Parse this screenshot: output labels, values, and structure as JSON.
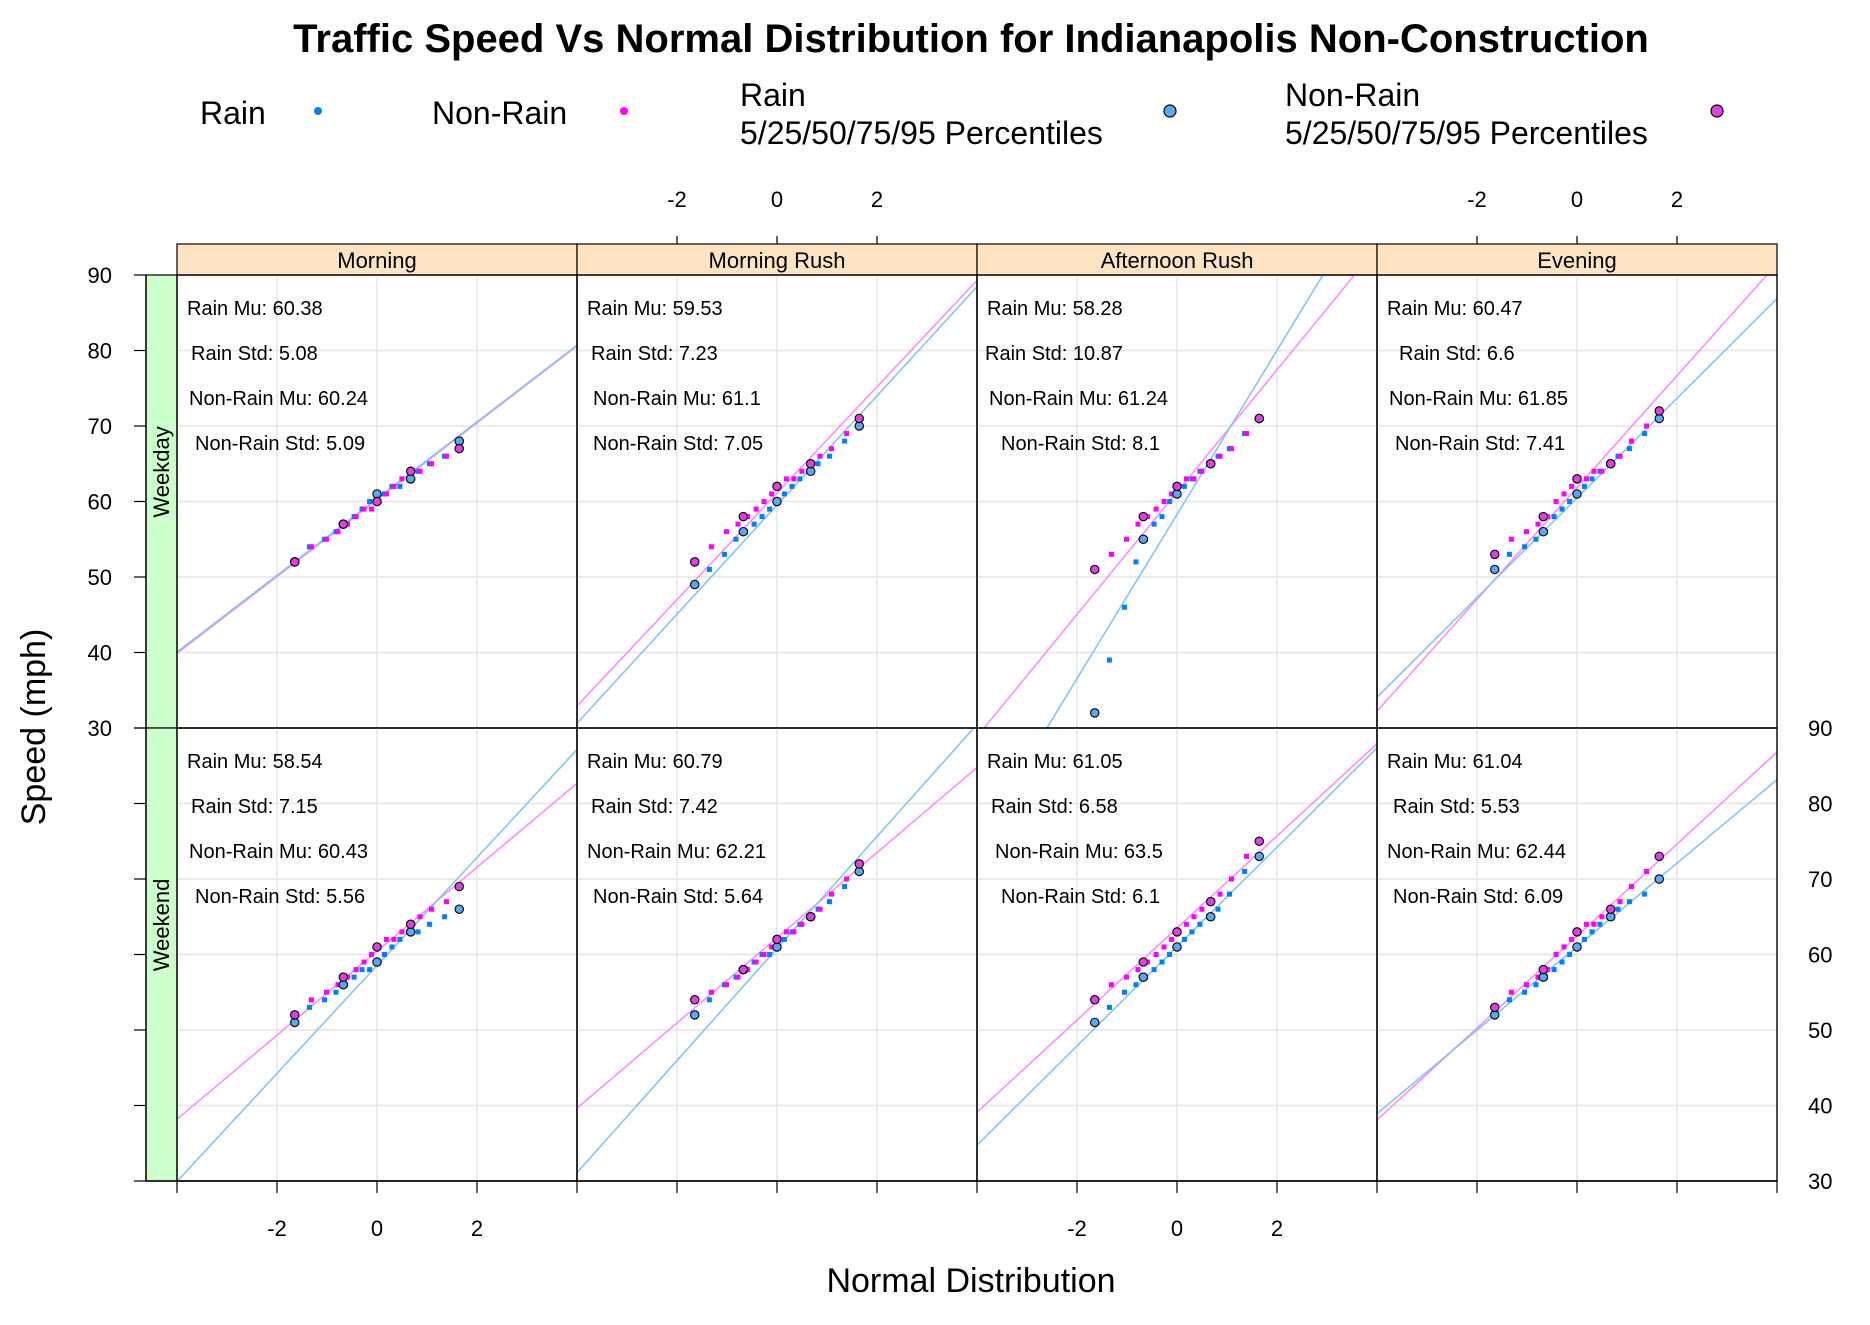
{
  "chart_data": {
    "type": "scatter",
    "title": "Traffic Speed Vs Normal Distribution for Indianapolis Non-Construction",
    "xlabel": "Normal Distribution",
    "ylabel": "Speed (mph)",
    "xlim": [
      -4,
      4
    ],
    "ylim": [
      30,
      90
    ],
    "x_ticks": [
      -2,
      0,
      2
    ],
    "y_ticks": [
      30,
      40,
      50,
      60,
      70,
      80,
      90
    ],
    "grid": true,
    "legend_placement": "top",
    "legend": [
      {
        "label": "Rain",
        "color": "#0080ff",
        "marker": "small-dot"
      },
      {
        "label": "Non-Rain",
        "color": "#ff00ff",
        "marker": "small-dot"
      },
      {
        "label": "Rain\n5/25/50/75/95 Percentiles",
        "color": "#5aa8f0",
        "marker": "circle"
      },
      {
        "label": "Non-Rain\n5/25/50/75/95 Percentiles",
        "color": "#e040e0",
        "marker": "circle"
      }
    ],
    "colors": {
      "rain": "#0080ff",
      "nonrain": "#ff00ff",
      "rain_line": "#87c4ef",
      "nonrain_line": "#ff8cff",
      "strip_top": "#ffe4c4",
      "strip_side": "#ccffcc",
      "grid": "#e6e6e6"
    },
    "columns": [
      "Morning",
      "Morning Rush",
      "Afternoon Rush",
      "Evening"
    ],
    "rows": [
      "Weekday",
      "Weekend"
    ],
    "percentile_z": [
      -1.645,
      -0.674,
      0,
      0.674,
      1.645
    ],
    "panels": [
      {
        "row": "Weekday",
        "column": "Morning",
        "rain_mu": 60.38,
        "rain_std": 5.08,
        "nonrain_mu": 60.24,
        "nonrain_std": 5.09,
        "labels": [
          "Rain Mu: 60.38",
          "Rain Std: 5.08",
          "Non-Rain Mu: 60.24",
          "Non-Rain Std: 5.09"
        ],
        "rain_percentiles": [
          52,
          57,
          61,
          63,
          68
        ],
        "nonrain_percentiles": [
          52,
          57,
          60,
          64,
          67
        ]
      },
      {
        "row": "Weekday",
        "column": "Morning Rush",
        "rain_mu": 59.53,
        "rain_std": 7.23,
        "nonrain_mu": 61.1,
        "nonrain_std": 7.05,
        "labels": [
          "Rain Mu: 59.53",
          "Rain Std: 7.23",
          "Non-Rain Mu: 61.1",
          "Non-Rain Std: 7.05"
        ],
        "rain_percentiles": [
          49,
          56,
          60,
          64,
          70
        ],
        "nonrain_percentiles": [
          52,
          58,
          62,
          65,
          71
        ]
      },
      {
        "row": "Weekday",
        "column": "Afternoon Rush",
        "rain_mu": 58.28,
        "rain_std": 10.87,
        "nonrain_mu": 61.24,
        "nonrain_std": 8.1,
        "labels": [
          "Rain Mu: 58.28",
          "Rain Std: 10.87",
          "Non-Rain Mu: 61.24",
          "Non-Rain Std: 8.1"
        ],
        "rain_percentiles": [
          32,
          55,
          61,
          65,
          71
        ],
        "nonrain_percentiles": [
          51,
          58,
          62,
          65,
          71
        ]
      },
      {
        "row": "Weekday",
        "column": "Evening",
        "rain_mu": 60.47,
        "rain_std": 6.6,
        "nonrain_mu": 61.85,
        "nonrain_std": 7.41,
        "labels": [
          "Rain Mu: 60.47",
          "Rain Std: 6.6",
          "Non-Rain Mu: 61.85",
          "Non-Rain Std: 7.41"
        ],
        "rain_percentiles": [
          51,
          56,
          61,
          65,
          71
        ],
        "nonrain_percentiles": [
          53,
          58,
          63,
          65,
          72
        ]
      },
      {
        "row": "Weekend",
        "column": "Morning",
        "rain_mu": 58.54,
        "rain_std": 7.15,
        "nonrain_mu": 60.43,
        "nonrain_std": 5.56,
        "labels": [
          "Rain Mu: 58.54",
          "Rain Std: 7.15",
          "Non-Rain Mu: 60.43",
          "Non-Rain Std: 5.56"
        ],
        "rain_percentiles": [
          51,
          56,
          59,
          63,
          66
        ],
        "nonrain_percentiles": [
          52,
          57,
          61,
          64,
          69
        ]
      },
      {
        "row": "Weekend",
        "column": "Morning Rush",
        "rain_mu": 60.79,
        "rain_std": 7.42,
        "nonrain_mu": 62.21,
        "nonrain_std": 5.64,
        "labels": [
          "Rain Mu: 60.79",
          "Rain Std: 7.42",
          "Non-Rain Mu: 62.21",
          "Non-Rain Std: 5.64"
        ],
        "rain_percentiles": [
          52,
          58,
          61,
          65,
          71
        ],
        "nonrain_percentiles": [
          54,
          58,
          62,
          65,
          72
        ]
      },
      {
        "row": "Weekend",
        "column": "Afternoon Rush",
        "rain_mu": 61.05,
        "rain_std": 6.58,
        "nonrain_mu": 63.5,
        "nonrain_std": 6.1,
        "labels": [
          "Rain Mu: 61.05",
          "Rain Std: 6.58",
          "Non-Rain Mu: 63.5",
          "Non-Rain Std: 6.1"
        ],
        "rain_percentiles": [
          51,
          57,
          61,
          65,
          73
        ],
        "nonrain_percentiles": [
          54,
          59,
          63,
          67,
          75
        ]
      },
      {
        "row": "Weekend",
        "column": "Evening",
        "rain_mu": 61.04,
        "rain_std": 5.53,
        "nonrain_mu": 62.44,
        "nonrain_std": 6.09,
        "labels": [
          "Rain Mu: 61.04",
          "Rain Std: 5.53",
          "Non-Rain Mu: 62.44",
          "Non-Rain Std: 6.09"
        ],
        "rain_percentiles": [
          52,
          57,
          61,
          65,
          70
        ],
        "nonrain_percentiles": [
          53,
          58,
          63,
          66,
          73
        ]
      }
    ]
  }
}
